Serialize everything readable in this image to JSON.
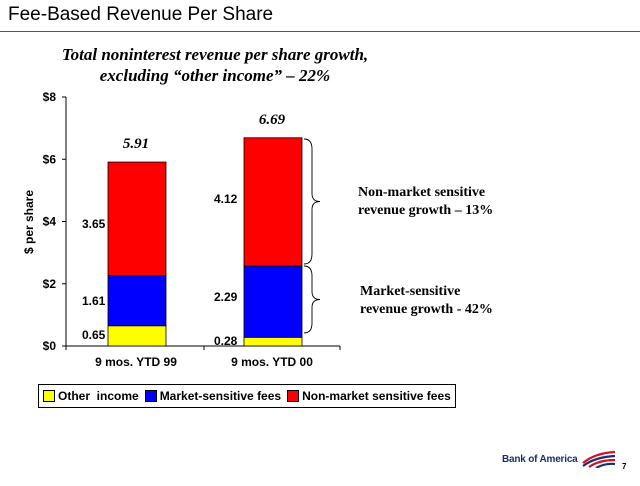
{
  "slide": {
    "title": "Fee-Based Revenue Per Share",
    "subtitle_line1": "Total noninterest revenue per share growth,",
    "subtitle_line2": "excluding “other income”  –  22%",
    "page_number": "7",
    "logo_text": "Bank of America"
  },
  "annotations": {
    "non_market_line1": "Non-market sensitive",
    "non_market_line2": "revenue growth –  13%",
    "market_line1": "Market-sensitive",
    "market_line2": "revenue growth - 42%"
  },
  "chart_data": {
    "type": "bar",
    "stacked": true,
    "categories": [
      "9 mos. YTD 99",
      "9 mos. YTD 00"
    ],
    "totals": [
      5.91,
      6.69
    ],
    "total_labels": [
      "5.91",
      "6.69"
    ],
    "series": [
      {
        "name": "Other  income",
        "values": [
          0.65,
          0.28
        ],
        "labels": [
          "0.65",
          "0.28"
        ],
        "color": "#ffff00"
      },
      {
        "name": "Market-sensitive fees",
        "values": [
          1.61,
          2.29
        ],
        "labels": [
          "1.61",
          "2.29"
        ],
        "color": "#0000ff"
      },
      {
        "name": "Non-market sensitive fees",
        "values": [
          3.65,
          4.12
        ],
        "labels": [
          "3.65",
          "4.12"
        ],
        "color": "#ff0000"
      }
    ],
    "ylabel": "$ per share",
    "ylim": [
      0,
      8
    ],
    "yticks": [
      "$0",
      "$2",
      "$4",
      "$6",
      "$8"
    ],
    "legend_position": "bottom-left",
    "grid": false
  }
}
